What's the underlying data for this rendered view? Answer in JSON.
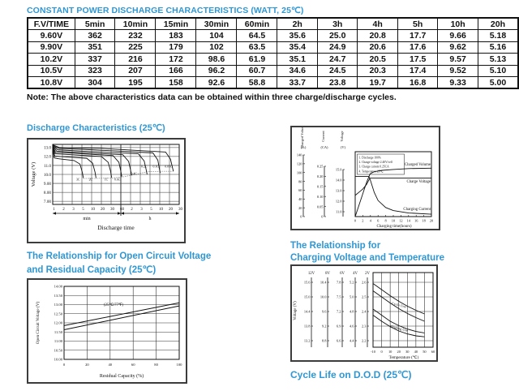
{
  "page": {
    "title": "CONSTANT POWER DISCHARGE CHARACTERISTICS (WATT, 25℃)",
    "note": "Note: The above characteristics data can be obtained within three charge/discharge cycles.",
    "cycle_life_caption": "Cycle Life on D.O.D (25℃)",
    "accent_color": "#2F97D4"
  },
  "table": {
    "headers": [
      "F.V/TIME",
      "5min",
      "10min",
      "15min",
      "30min",
      "60min",
      "2h",
      "3h",
      "4h",
      "5h",
      "10h",
      "20h"
    ],
    "rows": [
      [
        "9.60V",
        "362",
        "232",
        "183",
        "104",
        "64.5",
        "35.6",
        "25.0",
        "20.8",
        "17.7",
        "9.66",
        "5.18"
      ],
      [
        "9.90V",
        "351",
        "225",
        "179",
        "102",
        "63.5",
        "35.4",
        "24.9",
        "20.6",
        "17.6",
        "9.62",
        "5.16"
      ],
      [
        "10.2V",
        "337",
        "216",
        "172",
        "98.6",
        "61.9",
        "35.1",
        "24.7",
        "20.5",
        "17.5",
        "9.57",
        "5.13"
      ],
      [
        "10.5V",
        "323",
        "207",
        "166",
        "96.2",
        "60.7",
        "34.6",
        "24.5",
        "20.3",
        "17.4",
        "9.52",
        "5.10"
      ],
      [
        "10.8V",
        "304",
        "195",
        "158",
        "92.6",
        "58.8",
        "33.7",
        "23.8",
        "19.7",
        "16.8",
        "9.33",
        "5.00"
      ]
    ]
  },
  "chart_data": [
    {
      "id": "discharge",
      "type": "line",
      "title": "Discharge Characteristics (25℃)",
      "ylabel": "Voltage (V)",
      "xlabel": "Discharge time",
      "x_sections": [
        "min",
        "h"
      ],
      "ylim": [
        6.65,
        13.35
      ],
      "yticks": [
        "13.0",
        "12.0",
        "11.0",
        "10.0",
        "9.00",
        "8.00",
        "7.00"
      ],
      "xticks": [
        "1",
        "2",
        "3",
        "5",
        "10",
        "20",
        "30",
        "60",
        "2",
        "3",
        "5",
        "10",
        "20",
        "30"
      ],
      "curves": [
        {
          "label": "3C",
          "points": [
            [
              0,
              13.0
            ],
            [
              0.15,
              11.85
            ],
            [
              0.6,
              11.75
            ],
            [
              2.2,
              11.55
            ],
            [
              2.8,
              11.15
            ],
            [
              3.05,
              10.2
            ],
            [
              3.15,
              9.6
            ]
          ],
          "label_at": [
            2.6,
            9.3
          ]
        },
        {
          "label": "2C",
          "points": [
            [
              0,
              13.0
            ],
            [
              0.2,
              12.05
            ],
            [
              0.8,
              12.0
            ],
            [
              3.5,
              11.8
            ],
            [
              4.1,
              11.25
            ],
            [
              4.35,
              10.25
            ],
            [
              4.45,
              9.6
            ]
          ],
          "label_at": [
            3.9,
            9.3
          ]
        },
        {
          "label": "1C",
          "points": [
            [
              0,
              13.05
            ],
            [
              0.25,
              12.3
            ],
            [
              1.2,
              12.25
            ],
            [
              5.0,
              12.0
            ],
            [
              5.7,
              11.35
            ],
            [
              5.95,
              10.35
            ],
            [
              6.05,
              9.65
            ]
          ],
          "label_at": [
            5.5,
            9.3
          ]
        },
        {
          "label": "0.6C",
          "points": [
            [
              0,
              13.1
            ],
            [
              0.3,
              12.45
            ],
            [
              1.6,
              12.4
            ],
            [
              6.2,
              12.1
            ],
            [
              6.8,
              11.35
            ],
            [
              7.0,
              10.35
            ],
            [
              7.1,
              9.75
            ]
          ],
          "label_at": [
            6.65,
            9.3
          ]
        },
        {
          "label": "0.4C",
          "points": [
            [
              0,
              13.15
            ],
            [
              0.4,
              12.6
            ],
            [
              2.0,
              12.5
            ],
            [
              7.2,
              12.2
            ],
            [
              7.8,
              11.45
            ],
            [
              8.0,
              10.5
            ],
            [
              8.1,
              9.9
            ]
          ],
          "label_at": [
            8.35,
            9.95
          ]
        },
        {
          "label": "0.2C",
          "points": [
            [
              0,
              13.2
            ],
            [
              0.5,
              12.75
            ],
            [
              3.0,
              12.6
            ],
            [
              8.8,
              12.3
            ],
            [
              9.4,
              11.5
            ],
            [
              9.6,
              10.55
            ],
            [
              9.7,
              10.0
            ]
          ],
          "label_at": [
            9.4,
            10.75
          ]
        },
        {
          "label": "0.1C",
          "points": [
            [
              0,
              13.25
            ],
            [
              0.6,
              12.9
            ],
            [
              4.0,
              12.75
            ],
            [
              10.3,
              12.4
            ],
            [
              10.8,
              11.6
            ],
            [
              10.95,
              10.7
            ],
            [
              11.05,
              10.15
            ]
          ],
          "label_at": [
            10.6,
            10.75
          ]
        },
        {
          "label": "0.05C",
          "points": [
            [
              0,
              13.3
            ],
            [
              0.7,
              13.0
            ],
            [
              5.0,
              12.9
            ],
            [
              11.6,
              12.5
            ],
            [
              12.1,
              11.7
            ],
            [
              12.3,
              10.8
            ],
            [
              12.4,
              10.35
            ]
          ],
          "label_at": [
            11.9,
            10.75
          ]
        }
      ],
      "cutoff_dotted": [
        [
          3.15,
          9.55
        ],
        [
          4.45,
          9.55
        ],
        [
          6.05,
          9.6
        ],
        [
          7.1,
          9.7
        ],
        [
          8.1,
          9.9
        ],
        [
          9.7,
          10.3
        ],
        [
          11.05,
          10.35
        ],
        [
          12.4,
          10.35
        ]
      ]
    },
    {
      "id": "charging",
      "type": "line",
      "title": "",
      "xlabel": "Charging time(hours)",
      "xticks": [
        "0",
        "2",
        "4",
        "6",
        "8",
        "10",
        "12",
        "14",
        "16",
        "18",
        "20"
      ],
      "axes": [
        {
          "name": "Charged Volume",
          "unit": "(%)",
          "ticks": [
            "140",
            "120",
            "100",
            "80",
            "60",
            "40",
            "20",
            "0"
          ],
          "range": [
            0,
            140
          ]
        },
        {
          "name": "Current",
          "unit": "(CA)",
          "ticks": [
            "0.25",
            "0.20",
            "0.15",
            "0.10",
            "0.05",
            "0"
          ],
          "range": [
            0,
            0.25
          ]
        },
        {
          "name": "Voltage",
          "unit": "(V)",
          "ticks": [
            "15.0",
            "14.0",
            "13.0",
            "12.0",
            "11.0"
          ],
          "range": [
            11,
            15
          ]
        }
      ],
      "legend": [
        "1. Discharge 100%",
        "2. Charge voltage 2.40V/cell",
        "3. Charge current 0.25CA",
        "4. Temperature 25℃"
      ],
      "series": [
        {
          "name": "Charged Volume",
          "axis": 0,
          "points": [
            [
              0,
              0
            ],
            [
              1,
              26
            ],
            [
              2,
              52
            ],
            [
              3,
              78
            ],
            [
              3.9,
              97
            ],
            [
              5,
              102
            ],
            [
              7,
              105
            ],
            [
              10,
              107
            ],
            [
              14,
              109
            ],
            [
              20,
              110
            ]
          ]
        },
        {
          "name": "Charge Voltage",
          "axis": 2,
          "points": [
            [
              0,
              12.55
            ],
            [
              1,
              12.85
            ],
            [
              2,
              13.15
            ],
            [
              3,
              13.6
            ],
            [
              3.8,
              14.15
            ],
            [
              4,
              14.2
            ],
            [
              20,
              14.2
            ]
          ]
        },
        {
          "name": "Charging Current",
          "axis": 1,
          "points": [
            [
              0,
              0.2
            ],
            [
              3.6,
              0.2
            ],
            [
              4,
              0.18
            ],
            [
              5,
              0.12
            ],
            [
              6,
              0.08
            ],
            [
              8,
              0.045
            ],
            [
              10,
              0.03
            ],
            [
              14,
              0.018
            ],
            [
              20,
              0.012
            ]
          ]
        }
      ]
    },
    {
      "id": "ocv",
      "type": "line",
      "title_line1": "The Relationship for Open Circuit Voltage",
      "title_line2": "and Residual Capacity (25℃)",
      "xlabel": "Residual Capacity (%)",
      "ylabel": "Open Circuit Voltage (V)",
      "annotation": "(25℃/77℉)",
      "ylim": [
        10.0,
        14.0
      ],
      "yticks": [
        "14.00",
        "13.50",
        "13.00",
        "12.50",
        "12.00",
        "11.50",
        "11.00",
        "10.50",
        "10.00"
      ],
      "xticks": [
        "0",
        "20",
        "40",
        "60",
        "80",
        "100"
      ],
      "series": [
        {
          "name": "upper",
          "points": [
            [
              0,
              11.85
            ],
            [
              100,
              13.1
            ]
          ]
        },
        {
          "name": "lower",
          "points": [
            [
              0,
              11.62
            ],
            [
              100,
              12.93
            ]
          ]
        }
      ]
    },
    {
      "id": "charge-temp",
      "type": "line",
      "title_line1": "The Relationship for",
      "title_line2": "Charging Voltage and Temperature",
      "xlabel": "Temperature (℃)",
      "ylabel": "Voltage (V)",
      "xticks": [
        "-10",
        "0",
        "10",
        "20",
        "30",
        "40",
        "50",
        "60"
      ],
      "scales": [
        {
          "name": "12V",
          "ticks": [
            "15.6",
            "15.0",
            "14.4",
            "13.8",
            "13.2"
          ]
        },
        {
          "name": "8V",
          "ticks": [
            "10.4",
            "10.0",
            "9.6",
            "9.2",
            "8.8"
          ]
        },
        {
          "name": "6V",
          "ticks": [
            "7.8",
            "7.5",
            "7.2",
            "6.9",
            "6.6"
          ]
        },
        {
          "name": "4V",
          "ticks": [
            "5.2",
            "5.0",
            "4.8",
            "4.6",
            "4.4"
          ]
        },
        {
          "name": "2V",
          "ticks": [
            "2.6",
            "2.5",
            "2.4",
            "2.3",
            "2.2"
          ]
        }
      ],
      "bands": [
        {
          "label": "Cycle Use",
          "upper": [
            [
              -10,
              15.55
            ],
            [
              0,
              15.3
            ],
            [
              10,
              15.05
            ],
            [
              20,
              14.82
            ],
            [
              30,
              14.62
            ],
            [
              40,
              14.45
            ],
            [
              50,
              14.3
            ]
          ],
          "lower": [
            [
              -10,
              15.25
            ],
            [
              0,
              15.0
            ],
            [
              10,
              14.75
            ],
            [
              20,
              14.52
            ],
            [
              30,
              14.32
            ],
            [
              40,
              14.15
            ],
            [
              50,
              14.0
            ]
          ]
        },
        {
          "label": "Floating Use",
          "upper": [
            [
              -10,
              14.5
            ],
            [
              0,
              14.25
            ],
            [
              10,
              14.0
            ],
            [
              20,
              13.82
            ],
            [
              30,
              13.68
            ],
            [
              40,
              13.58
            ],
            [
              50,
              13.52
            ]
          ],
          "lower": [
            [
              -10,
              14.25
            ],
            [
              0,
              14.0
            ],
            [
              10,
              13.78
            ],
            [
              20,
              13.6
            ],
            [
              30,
              13.48
            ],
            [
              40,
              13.4
            ],
            [
              50,
              13.36
            ]
          ]
        }
      ]
    }
  ]
}
